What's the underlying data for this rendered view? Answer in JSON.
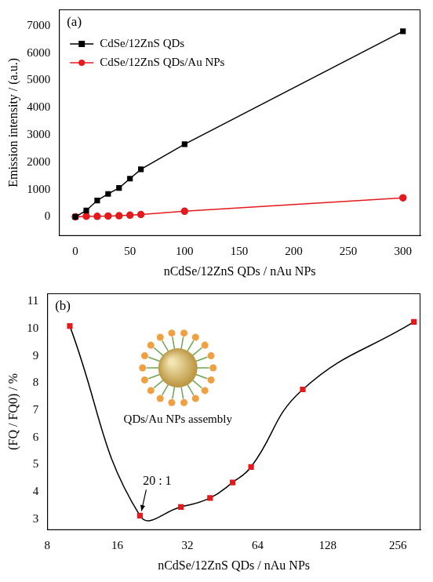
{
  "chart_data": [
    {
      "type": "line",
      "title": "(a)",
      "x_label": "nCdSe/12ZnS QDs / nAu NPs",
      "y_label": "Emission intensity / (a.u.)",
      "x": [
        0,
        10,
        20,
        30,
        40,
        50,
        60,
        100,
        300
      ],
      "series": [
        {
          "name": "CdSe/12ZnS QDs",
          "color": "#000000",
          "marker": "square",
          "values": [
            0,
            230,
            600,
            840,
            1060,
            1400,
            1740,
            2660,
            6800
          ]
        },
        {
          "name": "CdSe/12ZnS QDs/Au NPs",
          "color": "#e41a1c",
          "marker": "circle",
          "values": [
            0,
            23,
            19,
            29,
            40,
            61,
            85,
            206,
            697
          ]
        }
      ],
      "xlim": [
        -15,
        316
      ],
      "xticks": [
        0,
        50,
        100,
        150,
        200,
        250,
        300
      ],
      "ylim": [
        -700,
        7600
      ],
      "yticks": [
        0,
        1000,
        2000,
        3000,
        4000,
        5000,
        6000,
        7000
      ],
      "grid": false,
      "legend": "upper left",
      "line_style": "solid"
    },
    {
      "type": "line",
      "title": "(b)",
      "x_label": "nCdSe/12ZnS QDs / nAu NPs",
      "y_label": "(FQ / FQ0) / %",
      "x": [
        10,
        20,
        30,
        40,
        50,
        60,
        100,
        300
      ],
      "series": [
        {
          "name": "FQ / FQ0",
          "color": "#e41a1c",
          "marker": "square",
          "values": [
            10.1,
            3.13,
            3.45,
            3.78,
            4.35,
            4.92,
            7.77,
            10.25
          ]
        }
      ],
      "annotations": [
        {
          "text": "20 : 1",
          "x": 20,
          "y": 3.13
        },
        {
          "text": "QDs/Au NPs assembly"
        }
      ],
      "xlim": [
        8,
        320
      ],
      "xticks": [
        8,
        16,
        32,
        64,
        128,
        256
      ],
      "ylim": [
        2.6,
        11.3
      ],
      "yticks": [
        3,
        4,
        5,
        6,
        7,
        8,
        9,
        10,
        11
      ],
      "log": "x",
      "grid": false,
      "line_style": "smooth"
    }
  ]
}
